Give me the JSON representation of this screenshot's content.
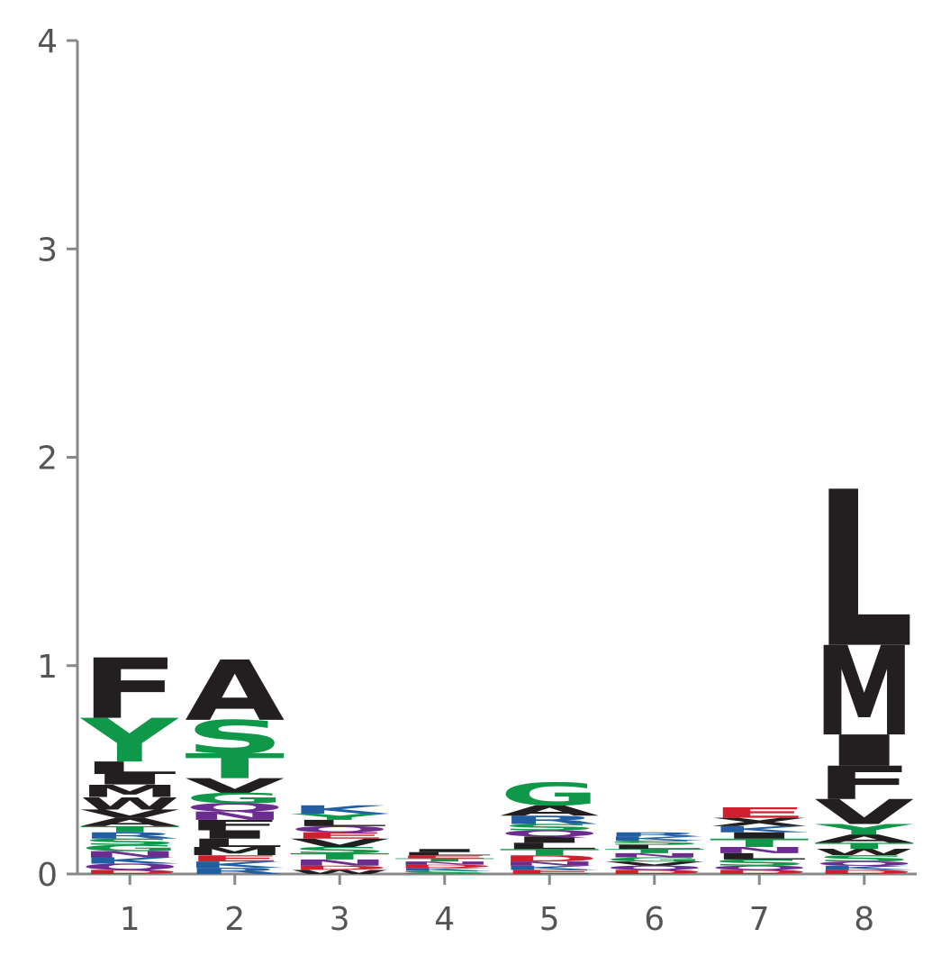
{
  "chart_data": {
    "type": "sequence-logo",
    "title": "",
    "xlabel": "",
    "ylabel": "",
    "ylim": [
      0,
      4
    ],
    "yticks": [
      "0",
      "1",
      "2",
      "3",
      "4"
    ],
    "positions": [
      "1",
      "2",
      "3",
      "4",
      "5",
      "6",
      "7",
      "8"
    ],
    "colors": {
      "hydrophobic": "#231f20",
      "polar": "#10984a",
      "basic": "#225fa2",
      "acidic": "#d0202f",
      "amide": "#6c2c90"
    },
    "stacks": [
      [
        {
          "letter": "D",
          "height": 0.02,
          "color": "#d0202f"
        },
        {
          "letter": "Q",
          "height": 0.03,
          "color": "#6c2c90"
        },
        {
          "letter": "K",
          "height": 0.03,
          "color": "#225fa2"
        },
        {
          "letter": "N",
          "height": 0.03,
          "color": "#6c2c90"
        },
        {
          "letter": "G",
          "height": 0.03,
          "color": "#10984a"
        },
        {
          "letter": "S",
          "height": 0.03,
          "color": "#10984a"
        },
        {
          "letter": "R",
          "height": 0.03,
          "color": "#225fa2"
        },
        {
          "letter": "T",
          "height": 0.03,
          "color": "#10984a"
        },
        {
          "letter": "A",
          "height": 0.04,
          "color": "#231f20"
        },
        {
          "letter": "V",
          "height": 0.04,
          "color": "#231f20"
        },
        {
          "letter": "W",
          "height": 0.06,
          "color": "#231f20"
        },
        {
          "letter": "M",
          "height": 0.06,
          "color": "#231f20"
        },
        {
          "letter": "I",
          "height": 0.05,
          "color": "#231f20"
        },
        {
          "letter": "L",
          "height": 0.06,
          "color": "#231f20"
        },
        {
          "letter": "Y",
          "height": 0.21,
          "color": "#10984a"
        },
        {
          "letter": "F",
          "height": 0.29,
          "color": "#231f20"
        }
      ],
      [
        {
          "letter": "R",
          "height": 0.03,
          "color": "#225fa2"
        },
        {
          "letter": "K",
          "height": 0.03,
          "color": "#225fa2"
        },
        {
          "letter": "E",
          "height": 0.03,
          "color": "#d0202f"
        },
        {
          "letter": "M",
          "height": 0.04,
          "color": "#231f20"
        },
        {
          "letter": "L",
          "height": 0.04,
          "color": "#231f20"
        },
        {
          "letter": "I",
          "height": 0.04,
          "color": "#231f20"
        },
        {
          "letter": "F",
          "height": 0.05,
          "color": "#231f20"
        },
        {
          "letter": "N",
          "height": 0.04,
          "color": "#6c2c90"
        },
        {
          "letter": "Q",
          "height": 0.04,
          "color": "#6c2c90"
        },
        {
          "letter": "G",
          "height": 0.05,
          "color": "#10984a"
        },
        {
          "letter": "V",
          "height": 0.07,
          "color": "#231f20"
        },
        {
          "letter": "T",
          "height": 0.12,
          "color": "#10984a"
        },
        {
          "letter": "S",
          "height": 0.16,
          "color": "#10984a"
        },
        {
          "letter": "A",
          "height": 0.29,
          "color": "#231f20"
        }
      ],
      [
        {
          "letter": "W",
          "height": 0.02,
          "color": "#231f20"
        },
        {
          "letter": "D",
          "height": 0.02,
          "color": "#d0202f"
        },
        {
          "letter": "N",
          "height": 0.03,
          "color": "#6c2c90"
        },
        {
          "letter": "T",
          "height": 0.03,
          "color": "#10984a"
        },
        {
          "letter": "S",
          "height": 0.03,
          "color": "#10984a"
        },
        {
          "letter": "V",
          "height": 0.04,
          "color": "#231f20"
        },
        {
          "letter": "E",
          "height": 0.03,
          "color": "#d0202f"
        },
        {
          "letter": "Q",
          "height": 0.03,
          "color": "#6c2c90"
        },
        {
          "letter": "L",
          "height": 0.03,
          "color": "#231f20"
        },
        {
          "letter": "Y",
          "height": 0.03,
          "color": "#10984a"
        },
        {
          "letter": "K",
          "height": 0.04,
          "color": "#225fa2"
        }
      ],
      [
        {
          "letter": "S",
          "height": 0.015,
          "color": "#10984a"
        },
        {
          "letter": "K",
          "height": 0.015,
          "color": "#225fa2"
        },
        {
          "letter": "D",
          "height": 0.015,
          "color": "#d0202f"
        },
        {
          "letter": "N",
          "height": 0.015,
          "color": "#6c2c90"
        },
        {
          "letter": "T",
          "height": 0.015,
          "color": "#10984a"
        },
        {
          "letter": "E",
          "height": 0.015,
          "color": "#d0202f"
        },
        {
          "letter": "L",
          "height": 0.015,
          "color": "#231f20"
        },
        {
          "letter": "I",
          "height": 0.015,
          "color": "#231f20"
        }
      ],
      [
        {
          "letter": "E",
          "height": 0.02,
          "color": "#d0202f"
        },
        {
          "letter": "K",
          "height": 0.02,
          "color": "#225fa2"
        },
        {
          "letter": "N",
          "height": 0.02,
          "color": "#6c2c90"
        },
        {
          "letter": "D",
          "height": 0.03,
          "color": "#d0202f"
        },
        {
          "letter": "T",
          "height": 0.03,
          "color": "#10984a"
        },
        {
          "letter": "L",
          "height": 0.03,
          "color": "#231f20"
        },
        {
          "letter": "I",
          "height": 0.03,
          "color": "#231f20"
        },
        {
          "letter": "Q",
          "height": 0.03,
          "color": "#6c2c90"
        },
        {
          "letter": "S",
          "height": 0.03,
          "color": "#10984a"
        },
        {
          "letter": "R",
          "height": 0.04,
          "color": "#225fa2"
        },
        {
          "letter": "A",
          "height": 0.05,
          "color": "#231f20"
        },
        {
          "letter": "G",
          "height": 0.11,
          "color": "#10984a"
        }
      ],
      [
        {
          "letter": "D",
          "height": 0.02,
          "color": "#d0202f"
        },
        {
          "letter": "Q",
          "height": 0.02,
          "color": "#6c2c90"
        },
        {
          "letter": "V",
          "height": 0.02,
          "color": "#231f20"
        },
        {
          "letter": "G",
          "height": 0.02,
          "color": "#10984a"
        },
        {
          "letter": "N",
          "height": 0.02,
          "color": "#6c2c90"
        },
        {
          "letter": "T",
          "height": 0.02,
          "color": "#10984a"
        },
        {
          "letter": "L",
          "height": 0.02,
          "color": "#231f20"
        },
        {
          "letter": "S",
          "height": 0.02,
          "color": "#10984a"
        },
        {
          "letter": "K",
          "height": 0.02,
          "color": "#225fa2"
        },
        {
          "letter": "R",
          "height": 0.02,
          "color": "#225fa2"
        }
      ],
      [
        {
          "letter": "D",
          "height": 0.02,
          "color": "#d0202f"
        },
        {
          "letter": "Q",
          "height": 0.02,
          "color": "#6c2c90"
        },
        {
          "letter": "S",
          "height": 0.03,
          "color": "#10984a"
        },
        {
          "letter": "L",
          "height": 0.03,
          "color": "#231f20"
        },
        {
          "letter": "N",
          "height": 0.03,
          "color": "#6c2c90"
        },
        {
          "letter": "T",
          "height": 0.04,
          "color": "#10984a"
        },
        {
          "letter": "I",
          "height": 0.03,
          "color": "#231f20"
        },
        {
          "letter": "K",
          "height": 0.03,
          "color": "#225fa2"
        },
        {
          "letter": "X",
          "height": 0.04,
          "color": "#231f20"
        },
        {
          "letter": "E",
          "height": 0.05,
          "color": "#d0202f"
        }
      ],
      [
        {
          "letter": "D",
          "height": 0.02,
          "color": "#d0202f"
        },
        {
          "letter": "K",
          "height": 0.02,
          "color": "#225fa2"
        },
        {
          "letter": "Q",
          "height": 0.02,
          "color": "#6c2c90"
        },
        {
          "letter": "S",
          "height": 0.03,
          "color": "#10984a"
        },
        {
          "letter": "W",
          "height": 0.03,
          "color": "#231f20"
        },
        {
          "letter": "T",
          "height": 0.03,
          "color": "#10984a"
        },
        {
          "letter": "A",
          "height": 0.04,
          "color": "#231f20"
        },
        {
          "letter": "Y",
          "height": 0.05,
          "color": "#10984a"
        },
        {
          "letter": "V",
          "height": 0.12,
          "color": "#231f20"
        },
        {
          "letter": "F",
          "height": 0.16,
          "color": "#231f20"
        },
        {
          "letter": "I",
          "height": 0.15,
          "color": "#231f20"
        },
        {
          "letter": "M",
          "height": 0.43,
          "color": "#231f20"
        },
        {
          "letter": "L",
          "height": 0.75,
          "color": "#231f20"
        }
      ]
    ]
  }
}
